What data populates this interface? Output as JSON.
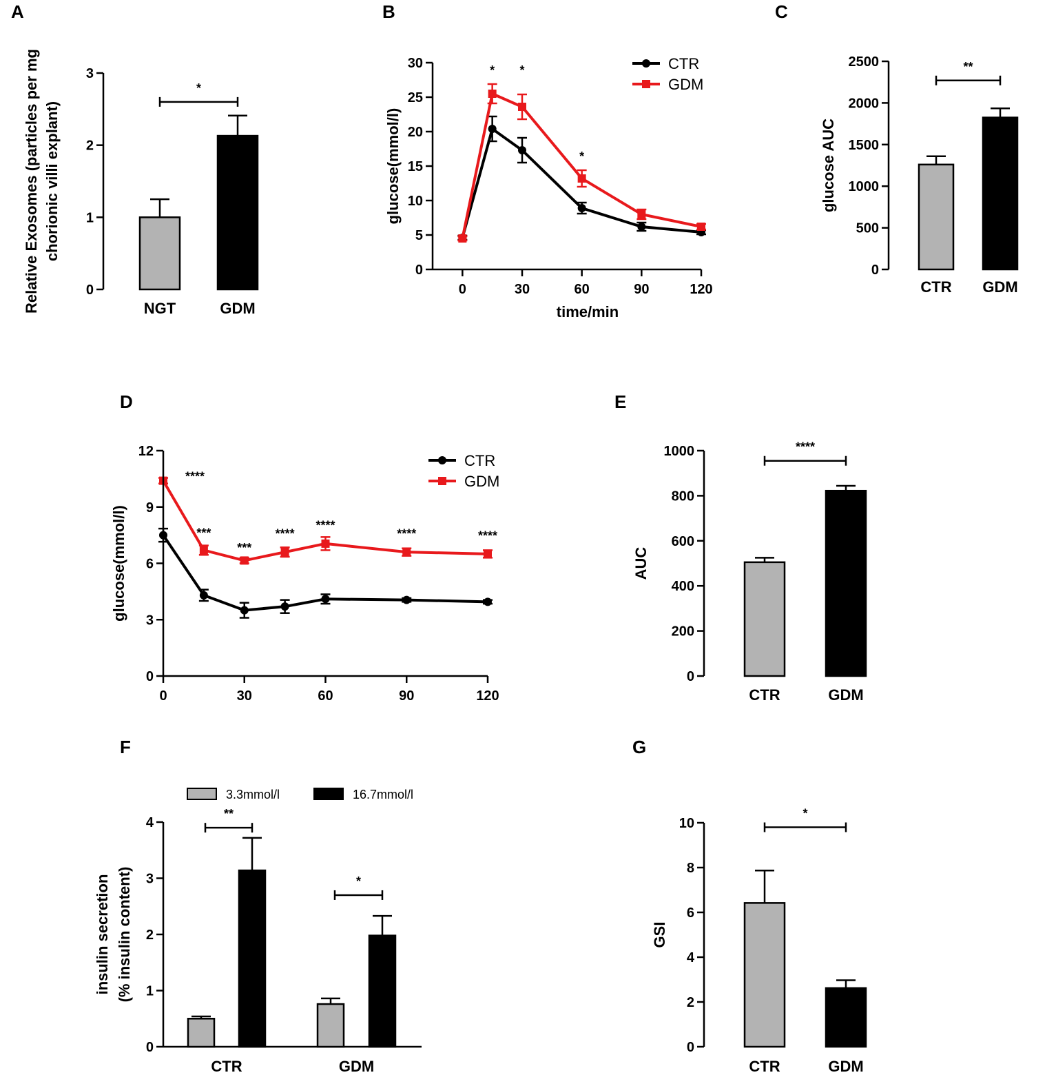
{
  "colors": {
    "gray": "#b3b3b3",
    "black": "#000000",
    "red": "#e8191c",
    "axis": "#000000"
  },
  "chart_data": [
    {
      "id": "A",
      "type": "bar",
      "letter": "A",
      "categories": [
        "NGT",
        "GDM"
      ],
      "values": [
        1.0,
        2.13
      ],
      "errors": [
        0.25,
        0.28
      ],
      "fills": [
        "gray",
        "black"
      ],
      "ylim": [
        0,
        3
      ],
      "yticks": [
        0,
        1,
        2,
        3
      ],
      "yticklabels": [
        "0",
        "1",
        "2",
        "3"
      ],
      "ylabel_lines": [
        "Relative Exosomes (particles per mg",
        "chorionic villi explant)"
      ],
      "xlabel": "",
      "sig": [
        {
          "from": 0,
          "to": 1,
          "label": "*",
          "y": 2.6
        }
      ]
    },
    {
      "id": "B",
      "type": "line",
      "letter": "B",
      "x": [
        0,
        15,
        30,
        60,
        90,
        120
      ],
      "xlim": [
        -15,
        120
      ],
      "xticks": [
        0,
        30,
        60,
        90,
        120
      ],
      "xticklabels": [
        "0",
        "30",
        "60",
        "90",
        "120"
      ],
      "ylim": [
        0,
        30
      ],
      "yticks": [
        0,
        5,
        10,
        15,
        20,
        25,
        30
      ],
      "yticklabels": [
        "0",
        "5",
        "10",
        "15",
        "20",
        "25",
        "30"
      ],
      "ylabel": "glucose(mmol/l)",
      "xlabel": "time/min",
      "series": [
        {
          "name": "CTR",
          "color": "black",
          "marker": "circle",
          "values": [
            4.6,
            20.4,
            17.3,
            8.9,
            6.2,
            5.4
          ],
          "errors": [
            0.3,
            1.8,
            1.8,
            0.8,
            0.6,
            0.3
          ]
        },
        {
          "name": "GDM",
          "color": "red",
          "marker": "square",
          "values": [
            4.5,
            25.5,
            23.6,
            13.2,
            8.0,
            6.2
          ],
          "errors": [
            0.3,
            1.4,
            1.8,
            1.2,
            0.7,
            0.4
          ]
        }
      ],
      "annotations": [
        {
          "x": 15,
          "y": 28.3,
          "label": "*"
        },
        {
          "x": 30,
          "y": 28.3,
          "label": "*"
        },
        {
          "x": 60,
          "y": 15.8,
          "label": "*"
        }
      ],
      "legend": "top-right"
    },
    {
      "id": "C",
      "type": "bar",
      "letter": "C",
      "categories": [
        "CTR",
        "GDM"
      ],
      "values": [
        1260,
        1825
      ],
      "errors": [
        100,
        110
      ],
      "fills": [
        "gray",
        "black"
      ],
      "ylim": [
        0,
        2500
      ],
      "yticks": [
        0,
        500,
        1000,
        1500,
        2000,
        2500
      ],
      "yticklabels": [
        "0",
        "500",
        "1000",
        "1500",
        "2000",
        "2500"
      ],
      "ylabel_lines": [
        "glucose AUC"
      ],
      "xlabel": "",
      "sig": [
        {
          "from": 0,
          "to": 1,
          "label": "**",
          "y": 2270
        }
      ]
    },
    {
      "id": "D",
      "type": "line",
      "letter": "D",
      "x": [
        0,
        15,
        30,
        45,
        60,
        90,
        120
      ],
      "xlim": [
        0,
        120
      ],
      "xticks": [
        0,
        30,
        60,
        90,
        120
      ],
      "xticklabels": [
        "0",
        "30",
        "60",
        "90",
        "120"
      ],
      "ylim": [
        0,
        12
      ],
      "yticks": [
        0,
        3,
        6,
        9,
        12
      ],
      "yticklabels": [
        "0",
        "3",
        "6",
        "9",
        "12"
      ],
      "ylabel": "glucose(mmol/l)",
      "xlabel": "",
      "series": [
        {
          "name": "CTR",
          "color": "black",
          "marker": "circle",
          "values": [
            7.5,
            4.3,
            3.5,
            3.7,
            4.1,
            4.05,
            3.95
          ],
          "errors": [
            0.35,
            0.3,
            0.4,
            0.35,
            0.25,
            0.1,
            0.1
          ]
        },
        {
          "name": "GDM",
          "color": "red",
          "marker": "square",
          "values": [
            10.4,
            6.7,
            6.15,
            6.6,
            7.05,
            6.6,
            6.5
          ],
          "errors": [
            0.15,
            0.25,
            0.15,
            0.25,
            0.35,
            0.2,
            0.2
          ]
        }
      ],
      "annotations": [
        {
          "x": 0,
          "y": 10.4,
          "label": "****",
          "dx": 32,
          "anchor": "start"
        },
        {
          "x": 15,
          "y": 7.4,
          "label": "***"
        },
        {
          "x": 30,
          "y": 6.6,
          "label": "***"
        },
        {
          "x": 45,
          "y": 7.35,
          "label": "****"
        },
        {
          "x": 60,
          "y": 7.8,
          "label": "****"
        },
        {
          "x": 90,
          "y": 7.35,
          "label": "****"
        },
        {
          "x": 120,
          "y": 7.25,
          "label": "****"
        }
      ],
      "legend": "top-right"
    },
    {
      "id": "E",
      "type": "bar",
      "letter": "E",
      "categories": [
        "CTR",
        "GDM"
      ],
      "values": [
        505,
        822
      ],
      "errors": [
        20,
        22
      ],
      "fills": [
        "gray",
        "black"
      ],
      "ylim": [
        0,
        1000
      ],
      "yticks": [
        0,
        200,
        400,
        600,
        800,
        1000
      ],
      "yticklabels": [
        "0",
        "200",
        "400",
        "600",
        "800",
        "1000"
      ],
      "ylabel_lines": [
        "AUC"
      ],
      "xlabel": "",
      "sig": [
        {
          "from": 0,
          "to": 1,
          "label": "****",
          "y": 955
        }
      ]
    },
    {
      "id": "F",
      "type": "bar",
      "letter": "F",
      "categories": [
        "CTR",
        "GDM"
      ],
      "series": [
        {
          "name": "3.3mmol/l",
          "fill": "gray",
          "values": [
            0.5,
            0.76
          ],
          "errors": [
            0.04,
            0.1
          ]
        },
        {
          "name": "16.7mmol/l",
          "fill": "black",
          "values": [
            3.14,
            1.98
          ],
          "errors": [
            0.58,
            0.35
          ]
        }
      ],
      "ylim": [
        0,
        4
      ],
      "yticks": [
        0,
        1,
        2,
        3,
        4
      ],
      "yticklabels": [
        "0",
        "1",
        "2",
        "3",
        "4"
      ],
      "ylabel_lines": [
        "insulin secretion",
        "(% insulin content)"
      ],
      "xlabel": "",
      "sig": [
        {
          "group": 0,
          "label": "**",
          "y": 3.9
        },
        {
          "group": 1,
          "label": "*",
          "y": 2.7
        }
      ],
      "legend": "top"
    },
    {
      "id": "G",
      "type": "bar",
      "letter": "G",
      "categories": [
        "CTR",
        "GDM"
      ],
      "values": [
        6.42,
        2.62
      ],
      "errors": [
        1.45,
        0.35
      ],
      "fills": [
        "gray",
        "black"
      ],
      "ylim": [
        0,
        10
      ],
      "yticks": [
        0,
        2,
        4,
        6,
        8,
        10
      ],
      "yticklabels": [
        "0",
        "2",
        "4",
        "6",
        "8",
        "10"
      ],
      "ylabel_lines": [
        "GSI"
      ],
      "xlabel": "",
      "sig": [
        {
          "from": 0,
          "to": 1,
          "label": "*",
          "y": 9.8
        }
      ]
    }
  ]
}
